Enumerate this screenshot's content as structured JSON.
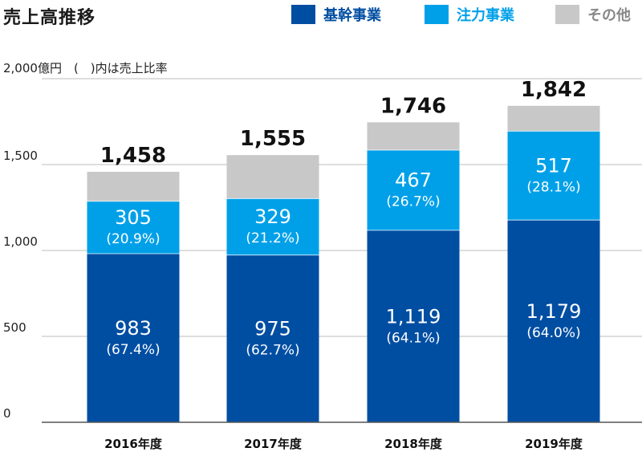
{
  "title": "売上高推移",
  "unit_label": "2,000億円　(　)内は売上比率",
  "legend": [
    {
      "label": "基幹事業",
      "color": "#004EA2"
    },
    {
      "label": "注力事業",
      "color": "#00A0E9"
    },
    {
      "label": "その他",
      "color": "#C8C8C8"
    }
  ],
  "chart_data": {
    "type": "bar",
    "stacked": true,
    "categories": [
      "2016年度",
      "2017年度",
      "2018年度",
      "2019年度"
    ],
    "series": [
      {
        "name": "基幹事業",
        "values": [
          983,
          975,
          1119,
          1179
        ],
        "labels": [
          "983",
          "975",
          "1,119",
          "1,179"
        ],
        "pct_labels": [
          "(67.4%)",
          "(62.7%)",
          "(64.1%)",
          "(64.0%)"
        ],
        "color": "#004EA2"
      },
      {
        "name": "注力事業",
        "values": [
          305,
          329,
          467,
          517
        ],
        "labels": [
          "305",
          "329",
          "467",
          "517"
        ],
        "pct_labels": [
          "(20.9%)",
          "(21.2%)",
          "(26.7%)",
          "(28.1%)"
        ],
        "color": "#00A0E9"
      },
      {
        "name": "その他",
        "values": [
          170,
          251,
          160,
          146
        ],
        "color": "#C8C8C8"
      }
    ],
    "totals": [
      "1,458",
      "1,555",
      "1,746",
      "1,842"
    ],
    "y_ticks": [
      {
        "value": 0,
        "label": "0"
      },
      {
        "value": 500,
        "label": "500"
      },
      {
        "value": 1000,
        "label": "1,000"
      },
      {
        "value": 1500,
        "label": "1,500"
      }
    ],
    "ylim": [
      0,
      2000
    ],
    "grid": true
  }
}
